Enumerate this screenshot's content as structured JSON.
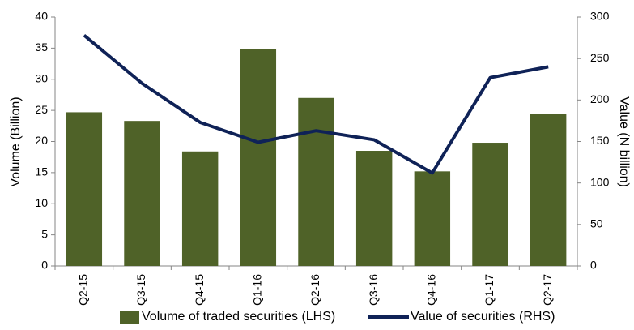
{
  "chart_data": {
    "type": "bar_line",
    "categories": [
      "Q2-15",
      "Q3-15",
      "Q4-15",
      "Q1-16",
      "Q2-16",
      "Q3-16",
      "Q4-16",
      "Q1-17",
      "Q2-17"
    ],
    "series": [
      {
        "name": "Volume of traded securities (LHS)",
        "type": "bar",
        "color": "#4f6228",
        "axis": "y",
        "values": [
          24.7,
          23.3,
          18.4,
          34.9,
          27.0,
          18.5,
          15.2,
          19.8,
          24.4
        ]
      },
      {
        "name": "Value of securities (RHS)",
        "type": "line",
        "color": "#0f2257",
        "axis": "y2",
        "values": [
          278,
          220,
          173,
          149,
          163,
          152,
          112,
          227,
          240
        ]
      }
    ],
    "ylabel": "Volume (Billion)",
    "y2label": "Value (N billion)",
    "ylim": [
      0,
      40
    ],
    "yticks": [
      0,
      5,
      10,
      15,
      20,
      25,
      30,
      35,
      40
    ],
    "y2lim": [
      0,
      300
    ],
    "y2ticks": [
      0,
      50,
      100,
      150,
      200,
      250,
      300
    ],
    "grid": false,
    "legend": "bottom"
  }
}
